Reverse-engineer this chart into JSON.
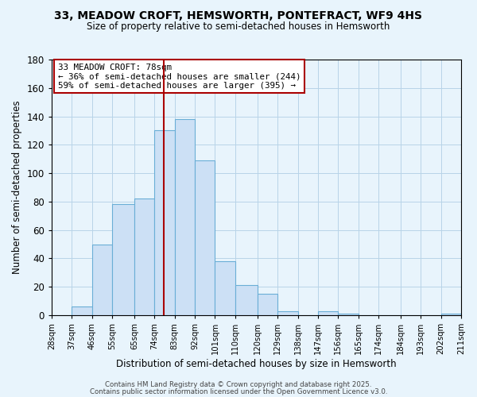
{
  "title": "33, MEADOW CROFT, HEMSWORTH, PONTEFRACT, WF9 4HS",
  "subtitle": "Size of property relative to semi-detached houses in Hemsworth",
  "xlabel": "Distribution of semi-detached houses by size in Hemsworth",
  "ylabel": "Number of semi-detached properties",
  "bar_values": [
    0,
    6,
    50,
    78,
    82,
    130,
    138,
    109,
    38,
    21,
    15,
    3,
    0,
    3,
    1,
    0,
    0,
    0,
    0,
    1
  ],
  "bin_edges": [
    28,
    37,
    46,
    55,
    65,
    74,
    83,
    92,
    101,
    110,
    120,
    129,
    138,
    147,
    156,
    165,
    174,
    184,
    193,
    202,
    211
  ],
  "tick_labels": [
    "28sqm",
    "37sqm",
    "46sqm",
    "55sqm",
    "65sqm",
    "74sqm",
    "83sqm",
    "92sqm",
    "101sqm",
    "110sqm",
    "120sqm",
    "129sqm",
    "138sqm",
    "147sqm",
    "156sqm",
    "165sqm",
    "174sqm",
    "184sqm",
    "193sqm",
    "202sqm",
    "211sqm"
  ],
  "bar_color": "#cce0f5",
  "bar_edge_color": "#6aaed6",
  "vline_x": 78,
  "vline_color": "#aa0000",
  "ylim": [
    0,
    180
  ],
  "yticks": [
    0,
    20,
    40,
    60,
    80,
    100,
    120,
    140,
    160,
    180
  ],
  "annotation_title": "33 MEADOW CROFT: 78sqm",
  "annotation_line1": "← 36% of semi-detached houses are smaller (244)",
  "annotation_line2": "59% of semi-detached houses are larger (395) →",
  "annotation_box_color": "#ffffff",
  "annotation_box_edge": "#aa0000",
  "footer1": "Contains HM Land Registry data © Crown copyright and database right 2025.",
  "footer2": "Contains public sector information licensed under the Open Government Licence v3.0.",
  "bg_color": "#e8f4fc",
  "grid_color": "#b8d4e8"
}
